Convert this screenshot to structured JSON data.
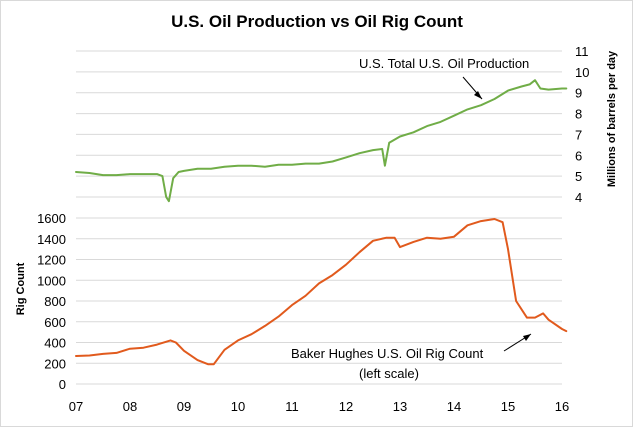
{
  "chart_data": {
    "type": "line",
    "title": "U.S. Oil Production vs Oil Rig Count",
    "x_tick_labels": [
      "07",
      "08",
      "09",
      "10",
      "11",
      "12",
      "13",
      "14",
      "15",
      "16"
    ],
    "y_left": {
      "label": "Rig Count",
      "range": [
        0,
        1600
      ],
      "ticks": [
        "0",
        "200",
        "400",
        "600",
        "800",
        "1000",
        "1200",
        "1400",
        "1600"
      ]
    },
    "y_right": {
      "label": "Millions of barrels per day",
      "range": [
        4,
        11
      ],
      "ticks": [
        "4",
        "5",
        "6",
        "7",
        "8",
        "9",
        "10",
        "11"
      ]
    },
    "grid": "horizontal",
    "series": [
      {
        "name": "U.S. Total U.S. Oil Production",
        "axis": "right",
        "color": "#70ad47",
        "x": [
          2007.0,
          2007.25,
          2007.5,
          2007.75,
          2008.0,
          2008.25,
          2008.5,
          2008.6,
          2008.67,
          2008.72,
          2008.8,
          2008.9,
          2009.0,
          2009.25,
          2009.5,
          2009.75,
          2010.0,
          2010.25,
          2010.5,
          2010.75,
          2011.0,
          2011.25,
          2011.5,
          2011.75,
          2012.0,
          2012.25,
          2012.5,
          2012.67,
          2012.72,
          2012.8,
          2013.0,
          2013.25,
          2013.5,
          2013.75,
          2014.0,
          2014.25,
          2014.5,
          2014.75,
          2015.0,
          2015.25,
          2015.4,
          2015.5,
          2015.6,
          2015.75,
          2016.0,
          2016.08
        ],
        "values": [
          5.2,
          5.15,
          5.05,
          5.05,
          5.1,
          5.1,
          5.1,
          5.0,
          4.0,
          3.8,
          4.9,
          5.2,
          5.25,
          5.35,
          5.35,
          5.45,
          5.5,
          5.5,
          5.45,
          5.55,
          5.55,
          5.6,
          5.6,
          5.7,
          5.9,
          6.1,
          6.25,
          6.3,
          5.5,
          6.6,
          6.9,
          7.1,
          7.4,
          7.6,
          7.9,
          8.2,
          8.4,
          8.7,
          9.1,
          9.3,
          9.4,
          9.6,
          9.2,
          9.15,
          9.2,
          9.2
        ]
      },
      {
        "name": "Baker Hughes U.S. Oil Rig Count",
        "axis": "left",
        "color": "#e15a1d",
        "x": [
          2007.0,
          2007.25,
          2007.5,
          2007.75,
          2008.0,
          2008.25,
          2008.5,
          2008.75,
          2008.85,
          2009.0,
          2009.25,
          2009.45,
          2009.55,
          2009.75,
          2010.0,
          2010.25,
          2010.5,
          2010.75,
          2011.0,
          2011.25,
          2011.5,
          2011.75,
          2012.0,
          2012.25,
          2012.5,
          2012.75,
          2012.9,
          2013.0,
          2013.25,
          2013.5,
          2013.75,
          2014.0,
          2014.25,
          2014.5,
          2014.75,
          2014.9,
          2015.0,
          2015.15,
          2015.35,
          2015.5,
          2015.65,
          2015.75,
          2016.0,
          2016.08
        ],
        "values": [
          270,
          275,
          290,
          300,
          340,
          350,
          380,
          420,
          400,
          320,
          230,
          190,
          190,
          330,
          420,
          480,
          560,
          650,
          760,
          850,
          970,
          1050,
          1150,
          1270,
          1380,
          1410,
          1410,
          1320,
          1370,
          1410,
          1400,
          1420,
          1530,
          1570,
          1590,
          1560,
          1300,
          800,
          640,
          640,
          680,
          620,
          530,
          510
        ]
      }
    ],
    "annotations": [
      {
        "text": "U.S. Total U.S. Oil Production",
        "target": "production"
      },
      {
        "text": "Baker Hughes U.S. Oil Rig Count",
        "target": "rigs"
      },
      {
        "text": "(left scale)",
        "target": "rigs"
      }
    ]
  }
}
